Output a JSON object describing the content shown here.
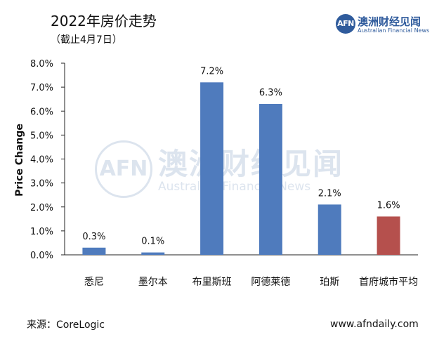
{
  "header": {
    "title": "2022年房价走势",
    "subtitle": "（截止4月7日）"
  },
  "logo": {
    "mark": "AFN",
    "name_cn": "澳洲财经见闻",
    "name_en": "Australian Financial News"
  },
  "watermark": {
    "mark": "AFN",
    "name_cn": "澳洲财经见闻",
    "name_en": "Australian Financial News"
  },
  "footer": {
    "source": "来源：CoreLogic",
    "site": "www.afndaily.com"
  },
  "colors": {
    "bar_default": "#4f7bbd",
    "bar_highlight": "#b5504d",
    "axis": "#222222"
  },
  "chart_data": {
    "type": "bar",
    "title": "2022年房价走势",
    "subtitle": "（截止4月7日）",
    "ylabel": "Price Change",
    "xlabel": "",
    "categories": [
      "悉尼",
      "墨尔本",
      "布里斯班",
      "阿德莱德",
      "珀斯",
      "首府城市平均"
    ],
    "values": [
      0.3,
      0.1,
      7.2,
      6.3,
      2.1,
      1.6
    ],
    "data_labels": [
      "0.3%",
      "0.1%",
      "7.2%",
      "6.3%",
      "2.1%",
      "1.6%"
    ],
    "highlight_index": 5,
    "ylim": [
      0,
      8
    ],
    "yticks": [
      "0.0%",
      "1.0%",
      "2.0%",
      "3.0%",
      "4.0%",
      "5.0%",
      "6.0%",
      "7.0%",
      "8.0%"
    ],
    "grid": false,
    "legend": "none"
  }
}
